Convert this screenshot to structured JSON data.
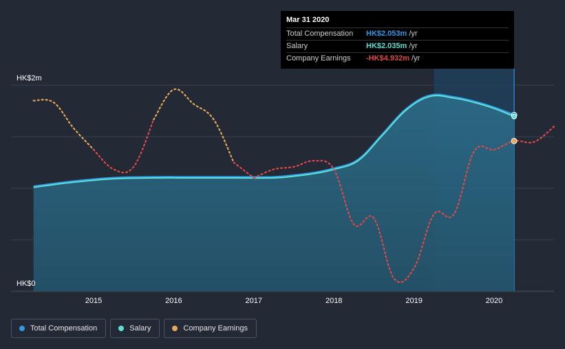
{
  "chart_data": {
    "type": "area",
    "currency": "HK$",
    "y_unit": "HK$m",
    "ylim": [
      0,
      2.4
    ],
    "yticks": [
      {
        "value": 0,
        "label": "HK$0"
      },
      {
        "value": 2,
        "label": "HK$2m"
      }
    ],
    "xlim": [
      2014.25,
      2020.75
    ],
    "xticks": [
      {
        "value": 2015,
        "label": "2015"
      },
      {
        "value": 2016,
        "label": "2016"
      },
      {
        "value": 2017,
        "label": "2017"
      },
      {
        "value": 2018,
        "label": "2018"
      },
      {
        "value": 2019,
        "label": "2019"
      },
      {
        "value": 2020,
        "label": "2020"
      }
    ],
    "series": [
      {
        "name": "Total Compensation",
        "color": "#2f9ae6",
        "style": "area",
        "x": [
          2014.25,
          2014.75,
          2015.25,
          2015.75,
          2016.25,
          2016.75,
          2017.25,
          2017.5,
          2017.75,
          2018.0,
          2018.3,
          2018.6,
          2018.9,
          2019.2,
          2019.5,
          2019.75,
          2020.0,
          2020.25
        ],
        "values": [
          1.22,
          1.28,
          1.32,
          1.33,
          1.33,
          1.33,
          1.33,
          1.35,
          1.38,
          1.43,
          1.53,
          1.82,
          2.12,
          2.28,
          2.26,
          2.21,
          2.14,
          2.053
        ]
      },
      {
        "name": "Salary",
        "color": "#5fe0d6",
        "style": "line",
        "x": [
          2014.25,
          2014.75,
          2015.25,
          2015.75,
          2016.25,
          2016.75,
          2017.25,
          2017.5,
          2017.75,
          2018.0,
          2018.3,
          2018.6,
          2018.9,
          2019.2,
          2019.5,
          2019.75,
          2020.0,
          2020.25
        ],
        "values": [
          1.21,
          1.27,
          1.31,
          1.32,
          1.32,
          1.32,
          1.32,
          1.34,
          1.37,
          1.42,
          1.52,
          1.81,
          2.11,
          2.27,
          2.25,
          2.2,
          2.13,
          2.035
        ]
      },
      {
        "name": "Company Earnings",
        "color": "#e8a85a",
        "negative_color": "#e04848",
        "style": "dotted",
        "note": "values rendered on the same visual axis as the chart, relative scale",
        "x": [
          2014.25,
          2014.5,
          2014.75,
          2015.0,
          2015.25,
          2015.5,
          2015.75,
          2016.0,
          2016.25,
          2016.5,
          2016.75,
          2017.0,
          2017.25,
          2017.5,
          2017.75,
          2018.0,
          2018.25,
          2018.5,
          2018.75,
          2019.0,
          2019.25,
          2019.5,
          2019.75,
          2020.0,
          2020.25,
          2020.5,
          2020.75
        ],
        "values": [
          2.22,
          2.2,
          1.9,
          1.65,
          1.42,
          1.45,
          2.0,
          2.35,
          2.18,
          2.0,
          1.5,
          1.32,
          1.42,
          1.45,
          1.52,
          1.42,
          0.78,
          0.85,
          0.15,
          0.27,
          0.9,
          0.9,
          1.63,
          1.65,
          1.75,
          1.74,
          1.92
        ],
        "positive_until_x": 2017.0
      }
    ],
    "highlight_from_x": 2019.25,
    "grid": true,
    "legend": "bottom-left"
  },
  "tooltip": {
    "title": "Mar 31 2020",
    "rows": [
      {
        "label": "Total Compensation",
        "value": "HK$2.053m",
        "unit": "/yr",
        "color": "#2f9ae6"
      },
      {
        "label": "Salary",
        "value": "HK$2.035m",
        "unit": "/yr",
        "color": "#5fe0d6"
      },
      {
        "label": "Company Earnings",
        "value": "-HK$4.932m",
        "unit": "/yr",
        "color": "#e04848"
      }
    ]
  },
  "legend": {
    "items": [
      {
        "label": "Total Compensation",
        "color": "#2f9ae6"
      },
      {
        "label": "Salary",
        "color": "#5fe0d6"
      },
      {
        "label": "Company Earnings",
        "color": "#e8a85a"
      }
    ]
  }
}
